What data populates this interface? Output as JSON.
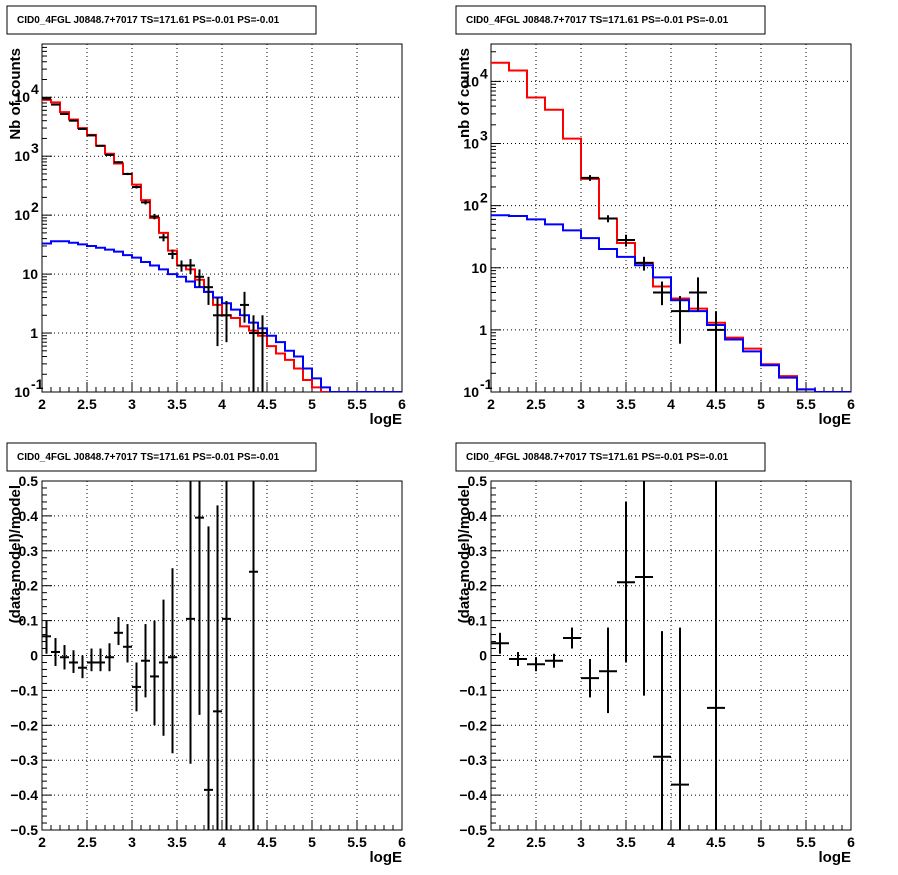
{
  "chart_data": [
    {
      "type": "line",
      "title": "CID0_4FGL J0848.7+7017 TS=171.61 PS=-0.01 PS=-0.01",
      "xlabel": "logE",
      "ylabel": "Nb of counts",
      "xlim": [
        2,
        6
      ],
      "ylim": [
        0.1,
        80000
      ],
      "yscale": "log",
      "grid": true,
      "xticks": [
        "2",
        "2.5",
        "3",
        "3.5",
        "4",
        "4.5",
        "5",
        "5.5",
        "6"
      ],
      "yticks": [
        {
          "value": 0.1,
          "label": "10",
          "sup": "-1"
        },
        {
          "value": 1,
          "label": "1",
          "sup": ""
        },
        {
          "value": 10,
          "label": "10",
          "sup": ""
        },
        {
          "value": 100,
          "label": "10",
          "sup": "2"
        },
        {
          "value": 1000,
          "label": "10",
          "sup": "3"
        },
        {
          "value": 10000,
          "label": "10",
          "sup": "4"
        }
      ],
      "bin_edges": [
        2.0,
        2.1,
        2.2,
        2.3,
        2.4,
        2.5,
        2.6,
        2.7,
        2.8,
        2.9,
        3.0,
        3.1,
        3.2,
        3.3,
        3.4,
        3.5,
        3.6,
        3.7,
        3.8,
        3.9,
        4.0,
        4.1,
        4.2,
        4.3,
        4.4,
        4.5,
        4.6,
        4.7,
        4.8,
        4.9,
        5.0,
        5.1,
        5.2,
        5.3,
        5.4,
        5.5,
        5.6,
        5.7,
        5.8,
        5.9,
        6.0
      ],
      "series": [
        {
          "color": "#ff0000",
          "style": "hist",
          "values": [
            9000,
            8200,
            5600,
            4200,
            3000,
            2300,
            1500,
            1100,
            750,
            500,
            330,
            180,
            90,
            50,
            25,
            14,
            12,
            8,
            5,
            3,
            2,
            1.8,
            1.3,
            1.1,
            0.9,
            0.6,
            0.45,
            0.35,
            0.25,
            0.16,
            0.12,
            0.1,
            0.1,
            0.1,
            0.1,
            0.1,
            0.1,
            0.1,
            0.1,
            0.1
          ]
        },
        {
          "color": "#0000ff",
          "style": "curve",
          "values": [
            33,
            36,
            36,
            34,
            32,
            30,
            28,
            26,
            24,
            21,
            19,
            16,
            14,
            12,
            10,
            9,
            7.5,
            6,
            5,
            4,
            3.2,
            2.5,
            2,
            1.5,
            1.2,
            0.9,
            0.7,
            0.5,
            0.4,
            0.25,
            0.17,
            0.12,
            0.1,
            0.1,
            0.1,
            0.1,
            0.1,
            0.1,
            0.1,
            0.1
          ]
        },
        {
          "color": "#000000",
          "style": "points",
          "x": [
            2.05,
            2.15,
            2.25,
            2.35,
            2.45,
            2.55,
            2.65,
            2.75,
            2.85,
            2.95,
            3.05,
            3.15,
            3.25,
            3.35,
            3.45,
            3.55,
            3.65,
            3.75,
            3.85,
            3.95,
            4.05,
            4.25,
            4.35,
            4.45
          ],
          "y": [
            9500,
            7500,
            5200,
            4000,
            2900,
            2250,
            1500,
            1050,
            790,
            500,
            300,
            165,
            95,
            42,
            22,
            14,
            14,
            9,
            6,
            2,
            2,
            3,
            1,
            1
          ],
          "ylo": [
            9400,
            7400,
            5100,
            3900,
            2850,
            2200,
            1460,
            1020,
            760,
            478,
            283,
            152,
            85,
            36,
            18,
            11,
            10,
            6,
            3,
            0.6,
            0.7,
            1.5,
            0.1,
            0.1
          ],
          "yhi": [
            9600,
            7600,
            5300,
            4100,
            2950,
            2300,
            1540,
            1080,
            820,
            522,
            317,
            178,
            105,
            48,
            26,
            17,
            18,
            12,
            9,
            4,
            3.5,
            5,
            2,
            2
          ]
        }
      ]
    },
    {
      "type": "line",
      "title": "CID0_4FGL J0848.7+7017 TS=171.61 PS=-0.01 PS=-0.01",
      "xlabel": "logE",
      "ylabel": "nb of counts",
      "xlim": [
        2,
        6
      ],
      "ylim": [
        0.1,
        40000
      ],
      "yscale": "log",
      "grid": true,
      "xticks": [
        "2",
        "2.5",
        "3",
        "3.5",
        "4",
        "4.5",
        "5",
        "5.5",
        "6"
      ],
      "yticks": [
        {
          "value": 0.1,
          "label": "10",
          "sup": "-1"
        },
        {
          "value": 1,
          "label": "1",
          "sup": ""
        },
        {
          "value": 10,
          "label": "10",
          "sup": ""
        },
        {
          "value": 100,
          "label": "10",
          "sup": "2"
        },
        {
          "value": 1000,
          "label": "10",
          "sup": "3"
        },
        {
          "value": 10000,
          "label": "10",
          "sup": "4"
        }
      ],
      "bin_edges": [
        2.0,
        2.2,
        2.4,
        2.6,
        2.8,
        3.0,
        3.2,
        3.4,
        3.6,
        3.8,
        4.0,
        4.2,
        4.4,
        4.6,
        4.8,
        5.0,
        5.2,
        5.4,
        5.6,
        5.8,
        6.0
      ],
      "series": [
        {
          "color": "#ff0000",
          "style": "hist",
          "values": [
            20000,
            15000,
            5500,
            3500,
            1200,
            270,
            62,
            25,
            12,
            5,
            3.2,
            2.2,
            1.3,
            0.75,
            0.5,
            0.28,
            0.18,
            0.11,
            0.1,
            0.1
          ]
        },
        {
          "color": "#0000ff",
          "style": "hist",
          "values": [
            70,
            68,
            60,
            50,
            40,
            30,
            20,
            15,
            11,
            7,
            3.0,
            2.0,
            1.2,
            0.7,
            0.45,
            0.27,
            0.17,
            0.11,
            0.1,
            0.1
          ]
        },
        {
          "color": "#000000",
          "style": "points",
          "x": [
            3.1,
            3.3,
            3.5,
            3.7,
            3.9,
            4.1,
            4.3,
            4.5
          ],
          "y": [
            280,
            62,
            28,
            12,
            4,
            2,
            4,
            1
          ],
          "ylo": [
            250,
            54,
            22,
            9,
            2.5,
            0.6,
            2,
            0.1
          ],
          "yhi": [
            310,
            70,
            34,
            15,
            6,
            3.5,
            7,
            2
          ]
        }
      ]
    },
    {
      "type": "scatter",
      "title": "CID0_4FGL J0848.7+7017 TS=171.61 PS=-0.01 PS=-0.01",
      "xlabel": "logE",
      "ylabel": "(data-model)/model",
      "xlim": [
        2,
        6
      ],
      "ylim": [
        -0.5,
        0.5
      ],
      "grid": true,
      "xticks": [
        "2",
        "2.5",
        "3",
        "3.5",
        "4",
        "4.5",
        "5",
        "5.5",
        "6"
      ],
      "yticks": [
        {
          "value": -0.5,
          "label": "−0.5"
        },
        {
          "value": -0.4,
          "label": "−0.4"
        },
        {
          "value": -0.3,
          "label": "−0.3"
        },
        {
          "value": -0.2,
          "label": "−0.2"
        },
        {
          "value": -0.1,
          "label": "−0.1"
        },
        {
          "value": 0,
          "label": "0"
        },
        {
          "value": 0.1,
          "label": "0.1"
        },
        {
          "value": 0.2,
          "label": "0.2"
        },
        {
          "value": 0.3,
          "label": "0.3"
        },
        {
          "value": 0.4,
          "label": "0.4"
        },
        {
          "value": 0.5,
          "label": "0.5"
        }
      ],
      "points": [
        {
          "x": 2.05,
          "y": 0.055,
          "lo": 0.005,
          "hi": 0.1
        },
        {
          "x": 2.15,
          "y": 0.01,
          "lo": -0.03,
          "hi": 0.05
        },
        {
          "x": 2.25,
          "y": -0.005,
          "lo": -0.04,
          "hi": 0.03
        },
        {
          "x": 2.35,
          "y": -0.02,
          "lo": -0.05,
          "hi": 0.015
        },
        {
          "x": 2.45,
          "y": -0.035,
          "lo": -0.065,
          "hi": 0.0
        },
        {
          "x": 2.55,
          "y": -0.02,
          "lo": -0.045,
          "hi": 0.02
        },
        {
          "x": 2.65,
          "y": -0.02,
          "lo": -0.045,
          "hi": 0.02
        },
        {
          "x": 2.75,
          "y": -0.005,
          "lo": -0.045,
          "hi": 0.035
        },
        {
          "x": 2.85,
          "y": 0.065,
          "lo": 0.03,
          "hi": 0.11
        },
        {
          "x": 2.95,
          "y": 0.025,
          "lo": -0.02,
          "hi": 0.09
        },
        {
          "x": 3.05,
          "y": -0.09,
          "lo": -0.16,
          "hi": -0.02
        },
        {
          "x": 3.15,
          "y": -0.015,
          "lo": -0.12,
          "hi": 0.09
        },
        {
          "x": 3.25,
          "y": -0.06,
          "lo": -0.2,
          "hi": 0.1
        },
        {
          "x": 3.35,
          "y": -0.02,
          "lo": -0.23,
          "hi": 0.16
        },
        {
          "x": 3.45,
          "y": -0.005,
          "lo": -0.28,
          "hi": 0.25
        },
        {
          "x": 3.65,
          "y": 0.105,
          "lo": -0.31,
          "hi": 0.5
        },
        {
          "x": 3.75,
          "y": 0.395,
          "lo": -0.17,
          "hi": 0.5
        },
        {
          "x": 3.85,
          "y": -0.385,
          "lo": -0.5,
          "hi": 0.37
        },
        {
          "x": 3.95,
          "y": -0.16,
          "lo": -0.5,
          "hi": 0.43
        },
        {
          "x": 4.05,
          "y": 0.105,
          "lo": -0.5,
          "hi": 0.5
        },
        {
          "x": 4.35,
          "y": 0.24,
          "lo": -0.5,
          "hi": 0.5
        }
      ]
    },
    {
      "type": "scatter",
      "title": "CID0_4FGL J0848.7+7017 TS=171.61 PS=-0.01 PS=-0.01",
      "xlabel": "logE",
      "ylabel": "(data-model)/model",
      "xlim": [
        2,
        6
      ],
      "ylim": [
        -0.5,
        0.5
      ],
      "grid": true,
      "xticks": [
        "2",
        "2.5",
        "3",
        "3.5",
        "4",
        "4.5",
        "5",
        "5.5",
        "6"
      ],
      "yticks": [
        {
          "value": -0.5,
          "label": "−0.5"
        },
        {
          "value": -0.4,
          "label": "−0.4"
        },
        {
          "value": -0.3,
          "label": "−0.3"
        },
        {
          "value": -0.2,
          "label": "−0.2"
        },
        {
          "value": -0.1,
          "label": "−0.1"
        },
        {
          "value": 0,
          "label": "0"
        },
        {
          "value": 0.1,
          "label": "0.1"
        },
        {
          "value": 0.2,
          "label": "0.2"
        },
        {
          "value": 0.3,
          "label": "0.3"
        },
        {
          "value": 0.4,
          "label": "0.4"
        },
        {
          "value": 0.5,
          "label": "0.5"
        }
      ],
      "points": [
        {
          "x": 2.1,
          "y": 0.035,
          "lo": 0.005,
          "hi": 0.065
        },
        {
          "x": 2.3,
          "y": -0.01,
          "lo": -0.03,
          "hi": 0.01
        },
        {
          "x": 2.5,
          "y": -0.025,
          "lo": -0.045,
          "hi": -0.005
        },
        {
          "x": 2.7,
          "y": -0.015,
          "lo": -0.035,
          "hi": 0.005
        },
        {
          "x": 2.9,
          "y": 0.05,
          "lo": 0.02,
          "hi": 0.08
        },
        {
          "x": 3.1,
          "y": -0.065,
          "lo": -0.12,
          "hi": -0.01
        },
        {
          "x": 3.3,
          "y": -0.045,
          "lo": -0.165,
          "hi": 0.08
        },
        {
          "x": 3.5,
          "y": 0.21,
          "lo": -0.02,
          "hi": 0.44
        },
        {
          "x": 3.7,
          "y": 0.225,
          "lo": -0.115,
          "hi": 0.5
        },
        {
          "x": 3.9,
          "y": -0.29,
          "lo": -0.5,
          "hi": 0.07
        },
        {
          "x": 4.1,
          "y": -0.37,
          "lo": -0.5,
          "hi": 0.08
        },
        {
          "x": 4.5,
          "y": -0.15,
          "lo": -0.5,
          "hi": 0.5
        }
      ]
    }
  ]
}
